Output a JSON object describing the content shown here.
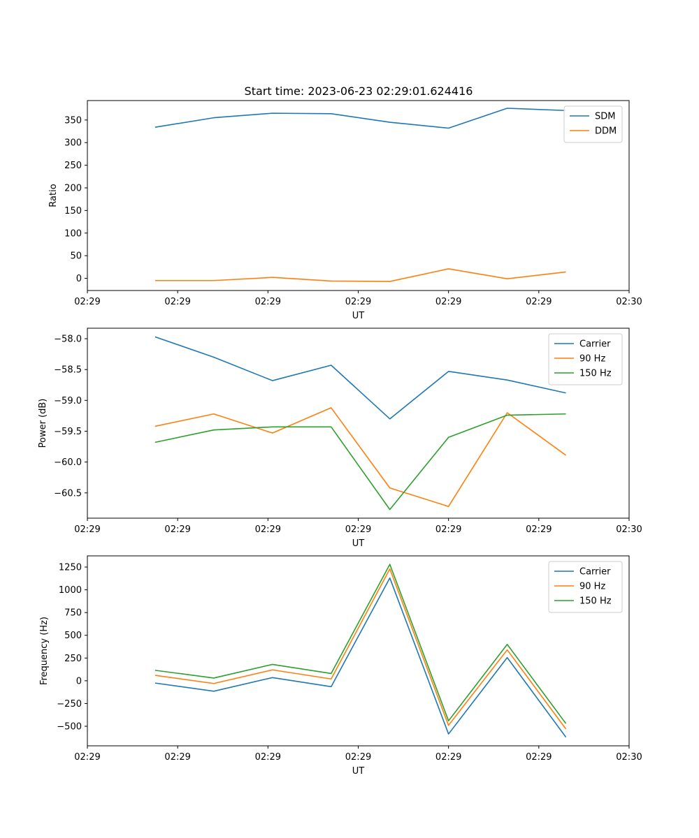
{
  "figure_title": "Start time: 2023-06-23 02:29:01.624416",
  "colors": {
    "blue": "#1f77b4",
    "orange": "#ff7f0e",
    "green": "#2ca02c"
  },
  "chart_data": [
    {
      "type": "line",
      "title": "Start time: 2023-06-23 02:29:01.624416",
      "xlabel": "UT",
      "ylabel": "Ratio",
      "x": [
        0.75,
        1.4,
        2.05,
        2.7,
        3.35,
        4.0,
        4.65,
        5.3
      ],
      "xlim": [
        0.0,
        6.0
      ],
      "xticks": [
        0,
        1,
        2,
        3,
        4,
        5,
        6
      ],
      "xtick_labels": [
        "02:29",
        "02:29",
        "02:29",
        "02:29",
        "02:29",
        "02:29",
        "02:30"
      ],
      "ylim": [
        -27,
        393
      ],
      "yticks": [
        0,
        50,
        100,
        150,
        200,
        250,
        300,
        350
      ],
      "ytick_labels": [
        "0",
        "50",
        "100",
        "150",
        "200",
        "250",
        "300",
        "350"
      ],
      "legend_position": "top-right",
      "series": [
        {
          "name": "SDM",
          "color": "#1f77b4",
          "values": [
            334,
            355,
            365,
            364,
            345,
            332,
            376,
            371
          ]
        },
        {
          "name": "DDM",
          "color": "#ff7f0e",
          "values": [
            -5,
            -5,
            2,
            -6,
            -7,
            21,
            -1,
            14
          ]
        }
      ]
    },
    {
      "type": "line",
      "xlabel": "UT",
      "ylabel": "Power (dB)",
      "x": [
        0.75,
        1.4,
        2.05,
        2.7,
        3.35,
        4.0,
        4.65,
        5.3
      ],
      "xlim": [
        0.0,
        6.0
      ],
      "xticks": [
        0,
        1,
        2,
        3,
        4,
        5,
        6
      ],
      "xtick_labels": [
        "02:29",
        "02:29",
        "02:29",
        "02:29",
        "02:29",
        "02:29",
        "02:30"
      ],
      "ylim": [
        -60.91,
        -57.83
      ],
      "yticks": [
        -58.0,
        -58.5,
        -59.0,
        -59.5,
        -60.0,
        -60.5
      ],
      "ytick_labels": [
        "−58.0",
        "−58.5",
        "−59.0",
        "−59.5",
        "−60.0",
        "−60.5"
      ],
      "legend_position": "top-right",
      "series": [
        {
          "name": "Carrier",
          "color": "#1f77b4",
          "values": [
            -57.97,
            -58.3,
            -58.68,
            -58.43,
            -59.3,
            -58.53,
            -58.67,
            -58.88
          ]
        },
        {
          "name": "90 Hz",
          "color": "#ff7f0e",
          "values": [
            -59.42,
            -59.22,
            -59.53,
            -59.12,
            -60.42,
            -60.72,
            -59.2,
            -59.89
          ]
        },
        {
          "name": "150 Hz",
          "color": "#2ca02c",
          "values": [
            -59.68,
            -59.48,
            -59.43,
            -59.43,
            -60.77,
            -59.6,
            -59.24,
            -59.22
          ]
        }
      ]
    },
    {
      "type": "line",
      "xlabel": "UT",
      "ylabel": "Frequency (Hz)",
      "x": [
        0.75,
        1.4,
        2.05,
        2.7,
        3.35,
        4.0,
        4.65,
        5.3
      ],
      "xlim": [
        0.0,
        6.0
      ],
      "xticks": [
        0,
        1,
        2,
        3,
        4,
        5,
        6
      ],
      "xtick_labels": [
        "02:29",
        "02:29",
        "02:29",
        "02:29",
        "02:29",
        "02:29",
        "02:30"
      ],
      "ylim": [
        -715,
        1373
      ],
      "yticks": [
        -500,
        -250,
        0,
        250,
        500,
        750,
        1000,
        1250
      ],
      "ytick_labels": [
        "−500",
        "−250",
        "0",
        "250",
        "500",
        "750",
        "1000",
        "1250"
      ],
      "legend_position": "top-right",
      "series": [
        {
          "name": "Carrier",
          "color": "#1f77b4",
          "values": [
            -25,
            -115,
            35,
            -65,
            1130,
            -585,
            255,
            -620
          ]
        },
        {
          "name": "90 Hz",
          "color": "#ff7f0e",
          "values": [
            60,
            -30,
            120,
            20,
            1230,
            -490,
            340,
            -530
          ]
        },
        {
          "name": "150 Hz",
          "color": "#2ca02c",
          "values": [
            115,
            30,
            180,
            80,
            1280,
            -440,
            400,
            -470
          ]
        }
      ]
    }
  ]
}
